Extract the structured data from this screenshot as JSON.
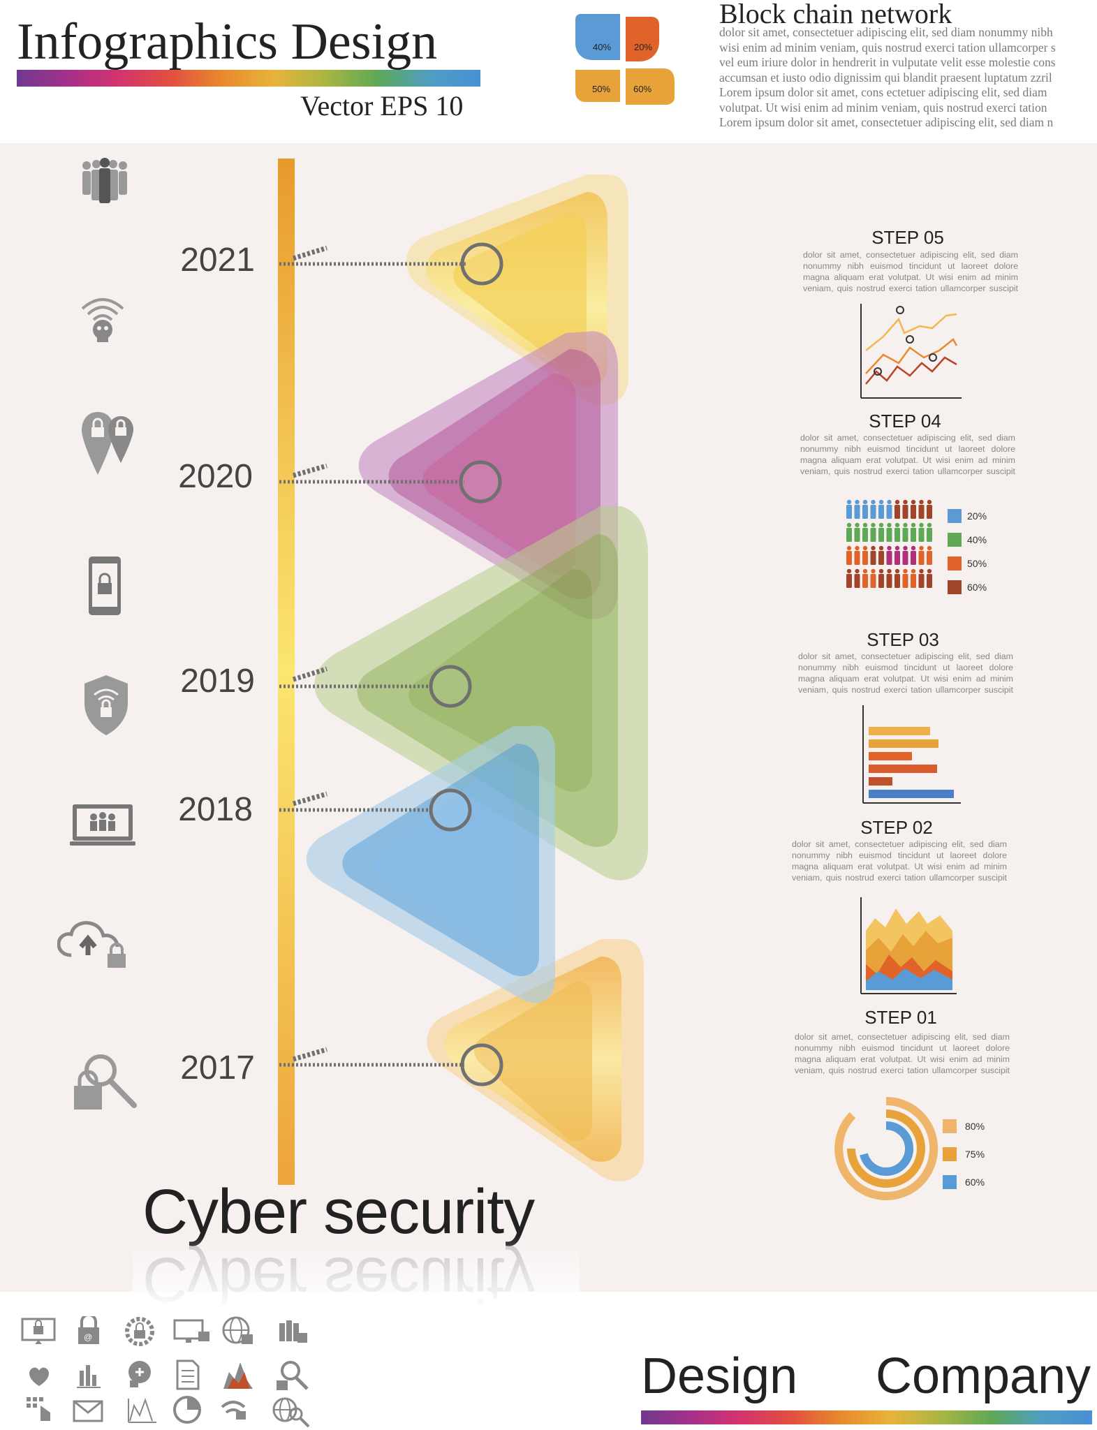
{
  "header": {
    "title": "Infographics Design",
    "subtitle": "Vector  EPS 10"
  },
  "petals": [
    {
      "label": "40%",
      "color": "#5b9bd5"
    },
    {
      "label": "20%",
      "color": "#e0642a"
    },
    {
      "label": "50%",
      "color": "#e8a23a"
    },
    {
      "label": "60%",
      "color": "#e8a23a"
    }
  ],
  "blockchain": {
    "title": "Block chain network",
    "lines": [
      "dolor sit amet, consectetuer adipiscing elit, sed diam nonummy nibh",
      "wisi enim ad minim veniam, quis nostrud exerci tation ullamcorper s",
      "vel eum iriure dolor in hendrerit in vulputate velit esse molestie cons",
      "accumsan et iusto odio dignissim qui blandit praesent luptatum zzril",
      "Lorem ipsum dolor sit amet, cons ectetuer adipiscing elit, sed diam",
      "volutpat. Ut wisi enim ad minim veniam, quis nostrud exerci tation",
      "Lorem ipsum dolor sit amet, consectetuer adipiscing elit, sed diam n"
    ]
  },
  "timeline": {
    "years": [
      "2021",
      "2020",
      "2019",
      "2018",
      "2017"
    ],
    "colors": {
      "2021": "#f3cf4e",
      "2020": "#b0559a",
      "2019": "#8fb152",
      "2018": "#5ea3da",
      "2017": "#efb94a"
    }
  },
  "icons": [
    "people-group-icon",
    "wifi-skull-icon",
    "location-lock-icon",
    "phone-lock-icon",
    "shield-wifi-lock-icon",
    "laptop-users-icon",
    "cloud-upload-lock-icon",
    "lock-search-icon"
  ],
  "steps": [
    {
      "title": "STEP 05",
      "lines": [
        "dolor sit amet, consectetuer adipiscing elit, sed diam",
        "nonummy nibh euismod tincidunt ut laoreet dolore",
        "magna aliquam erat volutpat. Ut wisi enim ad minim",
        "veniam, quis nostrud exerci tation ullamcorper suscipit"
      ]
    },
    {
      "title": "STEP 04",
      "lines": [
        "dolor sit amet, consectetuer adipiscing elit, sed diam",
        "nonummy nibh euismod tincidunt ut laoreet dolore",
        "magna aliquam erat volutpat. Ut wisi enim ad minim",
        "veniam, quis nostrud exerci tation ullamcorper suscipit"
      ]
    },
    {
      "title": "STEP 03",
      "lines": [
        "dolor sit amet, consectetuer adipiscing elit, sed diam",
        "nonummy nibh euismod tincidunt ut laoreet dolore",
        "magna aliquam erat volutpat. Ut wisi enim ad minim",
        "veniam, quis nostrud exerci tation ullamcorper suscipit"
      ]
    },
    {
      "title": "STEP 02",
      "lines": [
        "dolor sit amet, consectetuer adipiscing elit, sed diam",
        "nonummy nibh euismod tincidunt ut laoreet dolore",
        "magna aliquam erat volutpat. Ut wisi enim ad minim",
        "veniam, quis nostrud exerci tation ullamcorper suscipit"
      ]
    },
    {
      "title": "STEP 01",
      "lines": [
        "dolor sit amet, consectetuer adipiscing elit, sed diam",
        "nonummy nibh euismod tincidunt ut laoreet dolore",
        "magna aliquam erat volutpat. Ut wisi enim ad minim",
        "veniam, quis nostrud exerci tation ullamcorper suscipit"
      ]
    }
  ],
  "people_legend": [
    {
      "label": "20%",
      "color": "#5b9bd5"
    },
    {
      "label": "40%",
      "color": "#5fa856"
    },
    {
      "label": "50%",
      "color": "#e0642a"
    },
    {
      "label": "60%",
      "color": "#a0452a"
    }
  ],
  "ring_legend": [
    {
      "label": "80%",
      "color": "#efb56a"
    },
    {
      "label": "75%",
      "color": "#e8a23a"
    },
    {
      "label": "60%",
      "color": "#5b9bd5"
    }
  ],
  "main_title": "Cyber security",
  "footer": {
    "design": "Design",
    "company": "Company"
  }
}
